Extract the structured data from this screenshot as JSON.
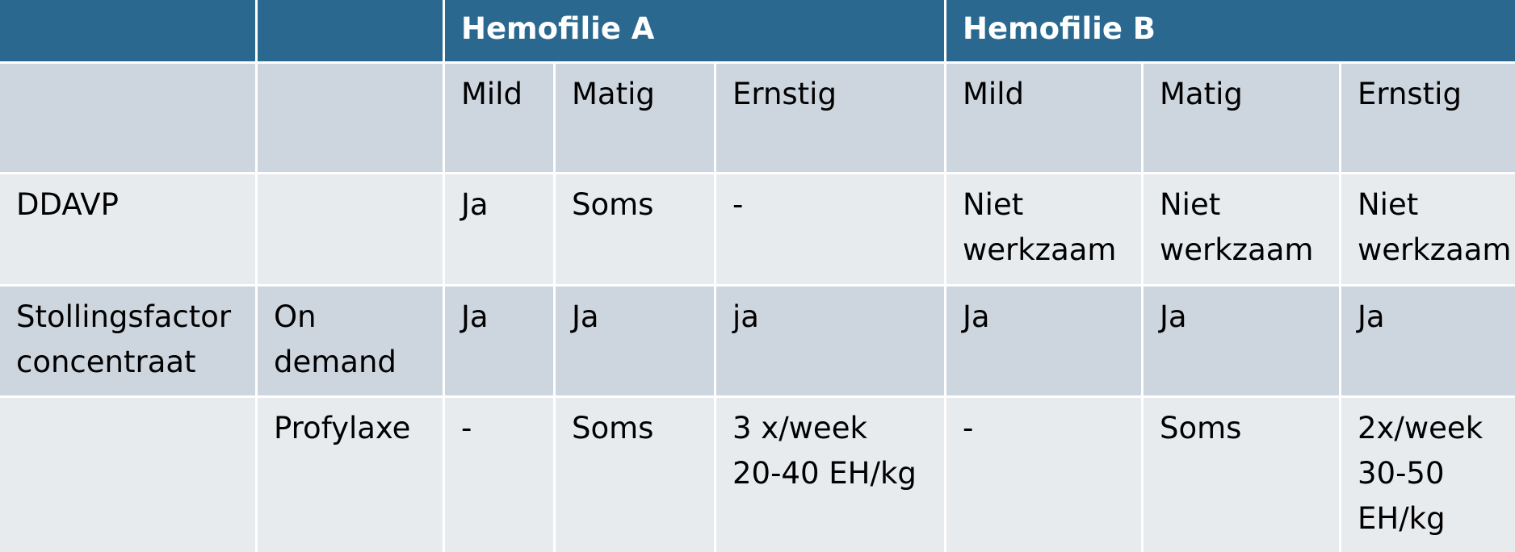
{
  "header": {
    "col1": "",
    "col2": "",
    "group_a": "Hemofilie A",
    "group_b": "Hemofilie B"
  },
  "subheader": {
    "col1": "",
    "col2": "",
    "cells": [
      "Mild",
      "Matig",
      "Ernstig",
      "Mild",
      "Matig",
      "Ernstig"
    ]
  },
  "rows": [
    {
      "label": "DDAVP",
      "sublabel": "",
      "cells": [
        "Ja",
        "Soms",
        "-",
        "Niet\nwerkzaam",
        "Niet\nwerkzaam",
        "Niet\nwerkzaam"
      ]
    },
    {
      "label": "Stollingsfactor\nconcentraat",
      "sublabel": "On\ndemand",
      "cells": [
        "Ja",
        "Ja",
        "ja",
        "Ja",
        "Ja",
        "Ja"
      ]
    },
    {
      "label": "",
      "sublabel": "Profylaxe",
      "cells": [
        "-",
        "Soms",
        "3 x/week\n20-40 EH/kg",
        "-",
        "Soms",
        "2x/week\n30-50\nEH/kg"
      ]
    }
  ]
}
